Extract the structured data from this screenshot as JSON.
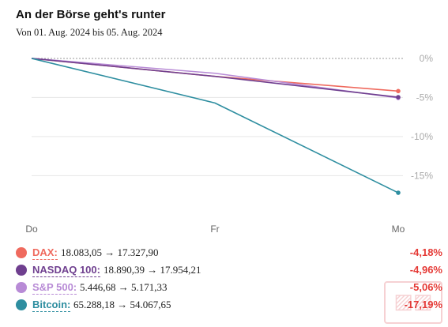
{
  "header": {
    "title": "An der Börse geht's runter",
    "subtitle": "Von 01. Aug. 2024 bis 05. Aug. 2024"
  },
  "colors": {
    "DAX": "#ef6a5e",
    "NASDAQ 100": "#6f3f8f",
    "S&P 500": "#b88bd6",
    "Bitcoin": "#2e8ea0",
    "negative": "#e53935",
    "grid": "#e6e6e6",
    "axis_text": "#aaaaaa"
  },
  "chart_data": {
    "type": "line",
    "title": "An der Börse geht's runter",
    "subtitle": "Von 01. Aug. 2024 bis 05. Aug. 2024",
    "categories": [
      "Do",
      "Fr",
      "Mo"
    ],
    "x_ticks": [
      "Do",
      "Fr",
      "Mo"
    ],
    "y_ticks": [
      0,
      -5,
      -10,
      -15
    ],
    "y_tick_labels": [
      "0%",
      "-5%",
      "-10%",
      "-15%"
    ],
    "ylim": [
      -18.5,
      0.5
    ],
    "grid": true,
    "zero_line_dotted": true,
    "series": [
      {
        "name": "DAX",
        "values": [
          0,
          -2.3,
          -4.18
        ],
        "color": "#ef6a5e",
        "end_marker": true
      },
      {
        "name": "S&P 500",
        "values": [
          0,
          -1.9,
          -5.06
        ],
        "color": "#b88bd6",
        "end_marker": true
      },
      {
        "name": "NASDAQ 100",
        "values": [
          0,
          -2.3,
          -4.96
        ],
        "color": "#6f3f8f",
        "end_marker": true
      },
      {
        "name": "Bitcoin",
        "values": [
          0,
          -5.7,
          -17.19
        ],
        "color": "#2e8ea0",
        "end_marker": true
      }
    ]
  },
  "legend": [
    {
      "name": "DAX:",
      "from": "18.083,05",
      "arrow": "→",
      "to": "17.327,90",
      "change": "-4,18%",
      "color": "#ef6a5e"
    },
    {
      "name": "NASDAQ 100:",
      "from": "18.890,39",
      "arrow": "→",
      "to": "17.954,21",
      "change": "-4,96%",
      "color": "#6f3f8f"
    },
    {
      "name": "S&P 500:",
      "from": "5.446,68",
      "arrow": "→",
      "to": "5.171,33",
      "change": "-5,06%",
      "color": "#b88bd6"
    },
    {
      "name": "Bitcoin:",
      "from": "65.288,18",
      "arrow": "→",
      "to": "54.067,65",
      "change": "-17,19%",
      "color": "#2e8ea0"
    }
  ]
}
